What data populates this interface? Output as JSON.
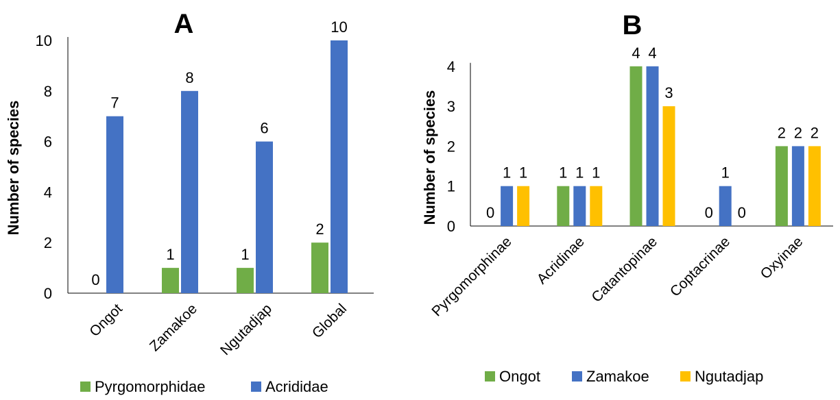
{
  "chart_data": [
    {
      "type": "bar",
      "title": "A",
      "ylabel": "Number of species",
      "xlabel": "",
      "ylim": [
        0,
        10
      ],
      "yticks": [
        0,
        2,
        4,
        6,
        8,
        10
      ],
      "categories": [
        "Ongot",
        "Zamakoe",
        "Ngutadjap",
        "Global"
      ],
      "series": [
        {
          "name": "Pyrgomorphidae",
          "color": "#70ad47",
          "values": [
            0,
            1,
            1,
            2
          ]
        },
        {
          "name": "Acrididae",
          "color": "#4472c4",
          "values": [
            7,
            8,
            6,
            10
          ]
        }
      ],
      "legend": "bottom"
    },
    {
      "type": "bar",
      "title": "B",
      "ylabel": "Number of species",
      "xlabel": "",
      "ylim": [
        0,
        4
      ],
      "yticks": [
        0,
        1,
        2,
        3,
        4
      ],
      "categories": [
        "Pyrgomorphinae",
        "Acridinae",
        "Catantopinae",
        "Coptacrinae",
        "Oxyinae"
      ],
      "series": [
        {
          "name": "Ongot",
          "color": "#70ad47",
          "values": [
            0,
            1,
            4,
            0,
            2
          ]
        },
        {
          "name": "Zamakoe",
          "color": "#4472c4",
          "values": [
            1,
            1,
            4,
            1,
            2
          ]
        },
        {
          "name": "Ngutadjap",
          "color": "#ffc000",
          "values": [
            1,
            1,
            3,
            0,
            2
          ]
        }
      ],
      "legend": "bottom"
    }
  ]
}
